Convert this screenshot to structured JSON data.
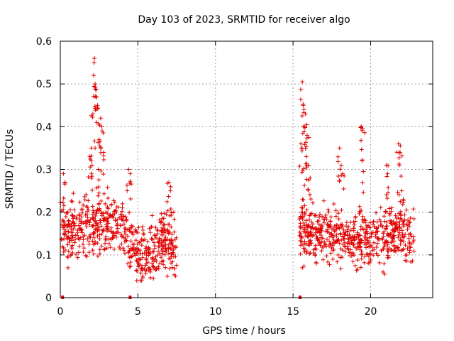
{
  "chart_data": {
    "type": "scatter",
    "title": "Day 103 of 2023, SRMTID for receiver algo",
    "xlabel": "GPS time / hours",
    "ylabel": "SRMTID / TECUs",
    "xlim": [
      0,
      24
    ],
    "ylim": [
      0,
      0.6
    ],
    "x_ticks": [
      0,
      5,
      10,
      15,
      20
    ],
    "x_tick_labels": [
      "0",
      "5",
      "10",
      "15",
      "20"
    ],
    "y_ticks": [
      0,
      0.1,
      0.2,
      0.3,
      0.4,
      0.5,
      0.6
    ],
    "y_tick_labels": [
      "0",
      "0.1",
      "0.2",
      "0.3",
      "0.4",
      "0.5",
      "0.6"
    ],
    "grid": true,
    "marker": "+",
    "color": "#e00000",
    "series": [
      {
        "name": "SRMTID",
        "segments": [
          {
            "start": 0.0,
            "end": 7.5,
            "baseline": [
              [
                0,
                0.16
              ],
              [
                1,
                0.15
              ],
              [
                2,
                0.17
              ],
              [
                3,
                0.18
              ],
              [
                4,
                0.16
              ],
              [
                5,
                0.11
              ],
              [
                5.5,
                0.09
              ],
              [
                6,
                0.12
              ],
              [
                7,
                0.13
              ],
              [
                7.5,
                0.12
              ]
            ],
            "spread": 0.055
          },
          {
            "start": 15.4,
            "end": 22.8,
            "baseline": [
              [
                15.4,
                0.17
              ],
              [
                16,
                0.14
              ],
              [
                17,
                0.15
              ],
              [
                18,
                0.14
              ],
              [
                19,
                0.13
              ],
              [
                20,
                0.14
              ],
              [
                21,
                0.15
              ],
              [
                22,
                0.15
              ],
              [
                22.8,
                0.15
              ]
            ],
            "spread": 0.05
          }
        ],
        "peaks": [
          [
            2.2,
            0.56
          ],
          [
            2.15,
            0.52
          ],
          [
            2.25,
            0.5
          ],
          [
            2.3,
            0.47
          ],
          [
            2.4,
            0.45
          ],
          [
            2.1,
            0.43
          ],
          [
            2.35,
            0.41
          ],
          [
            2.6,
            0.42
          ],
          [
            2.7,
            0.39
          ],
          [
            2.5,
            0.37
          ],
          [
            2.0,
            0.35
          ],
          [
            1.9,
            0.33
          ],
          [
            2.8,
            0.34
          ],
          [
            2.05,
            0.31
          ],
          [
            2.45,
            0.3
          ],
          [
            0.2,
            0.29
          ],
          [
            0.3,
            0.27
          ],
          [
            4.4,
            0.3
          ],
          [
            4.5,
            0.29
          ],
          [
            7.0,
            0.27
          ],
          [
            7.1,
            0.25
          ],
          [
            15.6,
            0.505
          ],
          [
            15.65,
            0.45
          ],
          [
            15.7,
            0.44
          ],
          [
            15.8,
            0.43
          ],
          [
            15.75,
            0.4
          ],
          [
            15.9,
            0.38
          ],
          [
            15.5,
            0.36
          ],
          [
            15.55,
            0.35
          ],
          [
            15.85,
            0.33
          ],
          [
            16.0,
            0.31
          ],
          [
            16.1,
            0.28
          ],
          [
            18.0,
            0.35
          ],
          [
            18.1,
            0.31
          ],
          [
            18.2,
            0.29
          ],
          [
            19.4,
            0.4
          ],
          [
            19.5,
            0.395
          ],
          [
            19.45,
            0.32
          ],
          [
            21.0,
            0.31
          ],
          [
            21.1,
            0.29
          ],
          [
            21.8,
            0.36
          ],
          [
            21.9,
            0.34
          ],
          [
            21.85,
            0.31
          ],
          [
            22.0,
            0.25
          ],
          [
            22.1,
            0.23
          ]
        ],
        "troughs": [
          [
            5.3,
            0.05
          ],
          [
            6.0,
            0.045
          ],
          [
            5.8,
            0.06
          ],
          [
            6.9,
            0.05
          ],
          [
            0.5,
            0.07
          ],
          [
            15.6,
            0.07
          ],
          [
            16.5,
            0.08
          ],
          [
            19.0,
            0.075
          ],
          [
            20.8,
            0.06
          ],
          [
            20.9,
            0.055
          ]
        ],
        "zero_points": [
          0.15,
          4.5,
          15.45
        ]
      }
    ]
  }
}
